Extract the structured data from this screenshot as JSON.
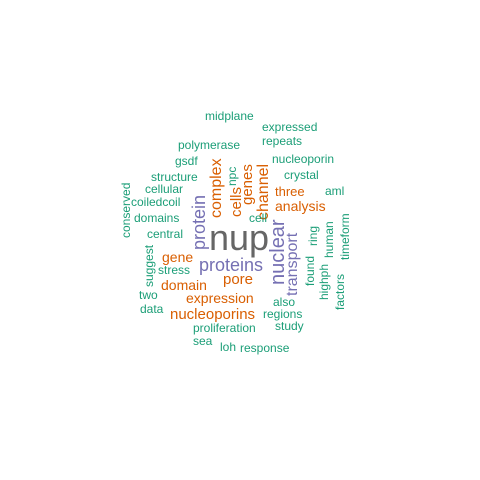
{
  "colors": {
    "gray": "#666666",
    "purple": "#7570b3",
    "orange": "#d95f02",
    "green": "#1b9e77"
  },
  "words": {
    "nup": "nup",
    "proteins": "proteins",
    "nuclear": "nuclear",
    "protein": "protein",
    "transport": "transport",
    "complex": "complex",
    "channel": "channel",
    "genes": "genes",
    "cells": "cells",
    "pore": "pore",
    "domain": "domain",
    "gene": "gene",
    "expression": "expression",
    "nucleoporins": "nucleoporins",
    "analysis": "analysis",
    "three": "three",
    "midplane": "midplane",
    "expressed": "expressed",
    "repeats": "repeats",
    "polymerase": "polymerase",
    "gsdf": "gsdf",
    "nucleoporin": "nucleoporin",
    "npc": "npc",
    "crystal": "crystal",
    "structure": "structure",
    "conserved": "conserved",
    "cellular": "cellular",
    "aml": "aml",
    "coiledcoil": "coiledcoil",
    "domains": "domains",
    "cell": "cell",
    "central": "central",
    "suggest": "suggest",
    "ring": "ring",
    "human": "human",
    "timeform": "timeform",
    "found": "found",
    "highph": "highph",
    "factors": "factors",
    "stress": "stress",
    "two": "two",
    "data": "data",
    "also": "also",
    "regions": "regions",
    "study": "study",
    "proliferation": "proliferation",
    "sea": "sea",
    "loh": "loh",
    "response": "response"
  }
}
